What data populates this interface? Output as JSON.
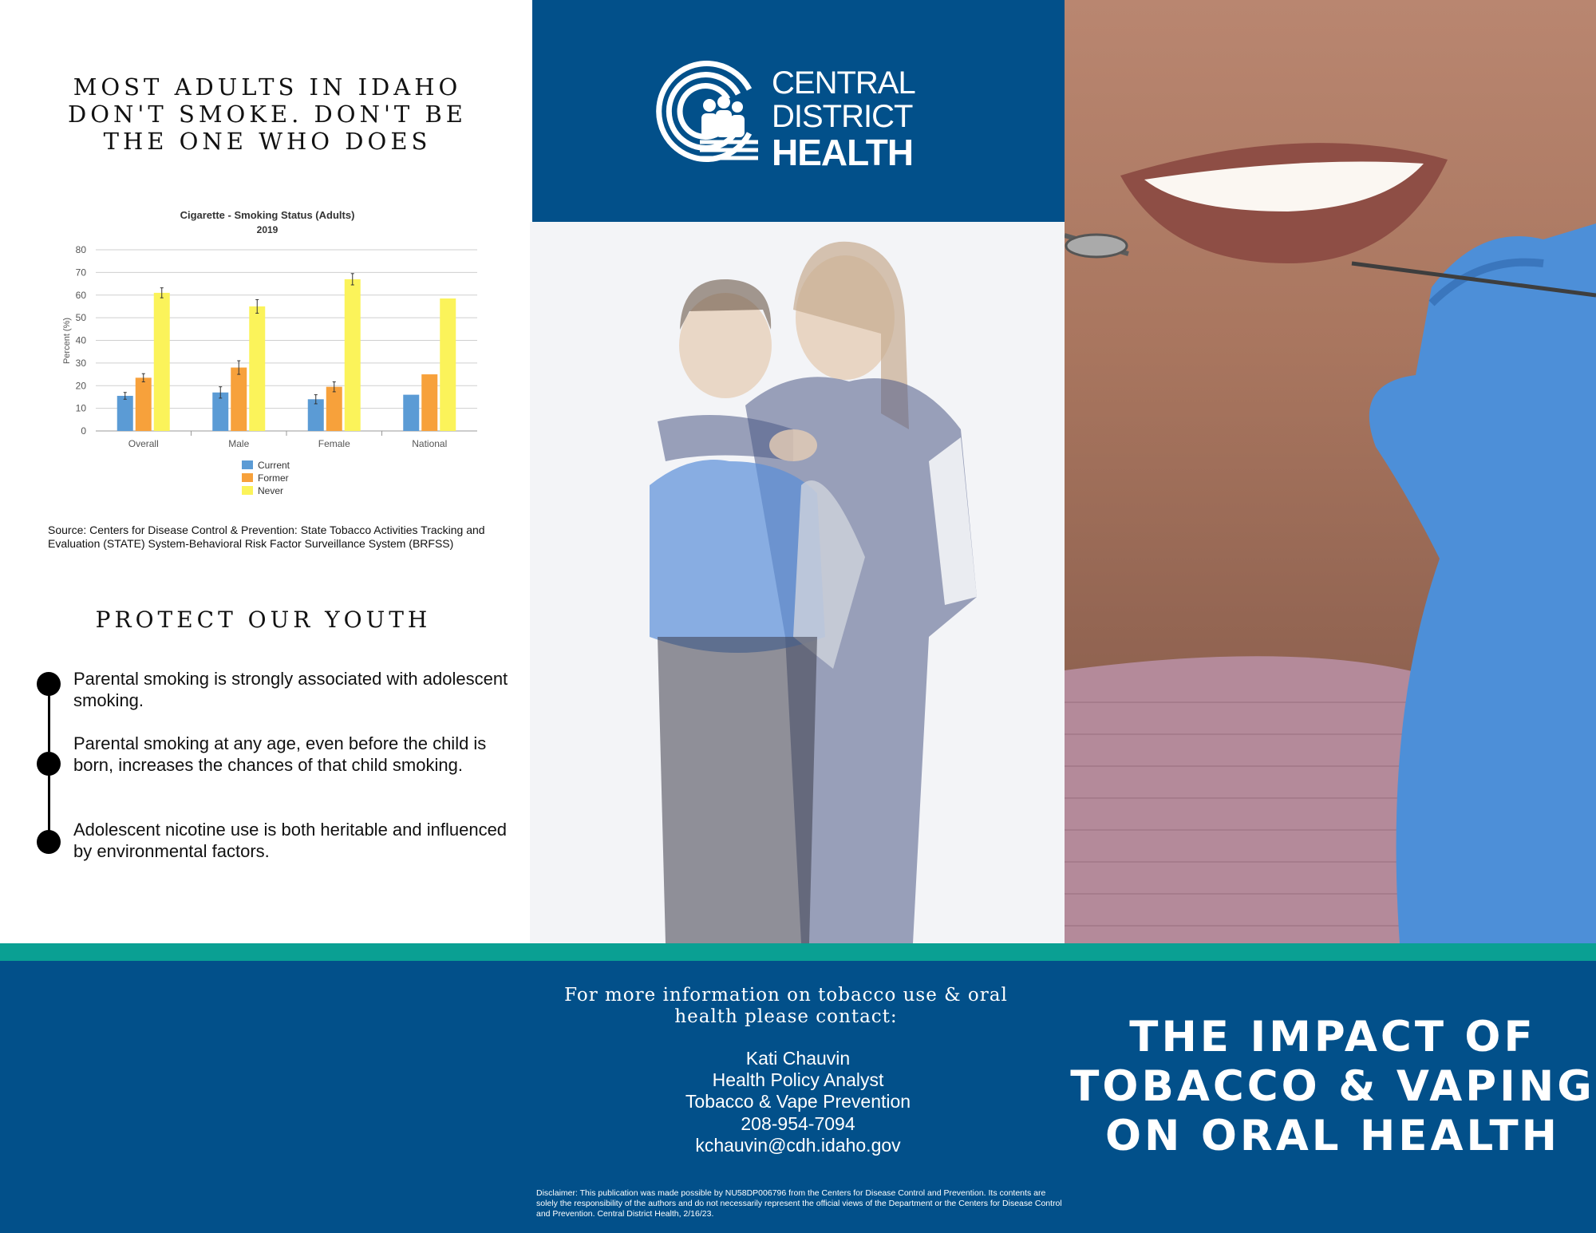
{
  "left_panel": {
    "heading": "MOST ADULTS IN IDAHO DON'T SMOKE. DON'T BE THE ONE WHO DOES",
    "source_note": "Source: Centers for Disease Control & Prevention: State Tobacco Activities Tracking and Evaluation (STATE) System-Behavioral Risk Factor Surveillance System (BRFSS)",
    "youth_heading": "PROTECT OUR YOUTH",
    "bullets": [
      "Parental smoking is strongly associated with adolescent smoking.",
      "Parental smoking at any age, even before the child is born, increases the chances of that child smoking.",
      "Adolescent nicotine use is both heritable and influenced by environmental factors."
    ]
  },
  "chart_data": {
    "type": "bar",
    "title": "Cigarette - Smoking Status (Adults)",
    "subtitle": "2019",
    "ylabel": "Percent (%)",
    "xlabel": "",
    "ylim": [
      0,
      80
    ],
    "yticks": [
      0,
      10,
      20,
      30,
      40,
      50,
      60,
      70,
      80
    ],
    "categories": [
      "Overall",
      "Male",
      "Female",
      "National"
    ],
    "series": [
      {
        "name": "Current",
        "color": "#5b9bd5",
        "values": [
          15.5,
          17,
          14,
          16
        ],
        "error": [
          1.5,
          2.5,
          2,
          0
        ]
      },
      {
        "name": "Former",
        "color": "#f7a13b",
        "values": [
          23.5,
          28,
          19.5,
          25
        ],
        "error": [
          1.8,
          3,
          2.2,
          0
        ]
      },
      {
        "name": "Never",
        "color": "#fbf35a",
        "values": [
          61,
          55,
          67,
          58.5
        ],
        "error": [
          2.2,
          3,
          2.5,
          0
        ]
      }
    ],
    "grid": true,
    "legend": "bottom"
  },
  "brand": {
    "line1": "CENTRAL",
    "line2": "DISTRICT",
    "line3": "HEALTH",
    "color": "#02508a"
  },
  "footer": {
    "contact_intro": "For more information on tobacco use & oral health please contact:",
    "contact_lines": [
      "Kati Chauvin",
      "Health Policy Analyst",
      "Tobacco & Vape Prevention",
      "208-954-7094",
      "kchauvin@cdh.idaho.gov"
    ],
    "disclaimer": "Disclaimer: This publication was made possible by NU58DP006796 from the Centers for Disease Control and Prevention. Its contents are solely the responsibility of the authors and do not necessarily represent the official views of the Department or the Centers for Disease Control and Prevention. Central District Health, 2/16/23.",
    "title_lines": [
      "THE IMPACT OF",
      "TOBACCO & VAPING",
      "ON ORAL HEALTH"
    ],
    "teal": "#0aa093"
  },
  "images": {
    "middle_photo": "mother-and-son-photo",
    "right_photo": "smiling-woman-dental-exam-photo"
  }
}
